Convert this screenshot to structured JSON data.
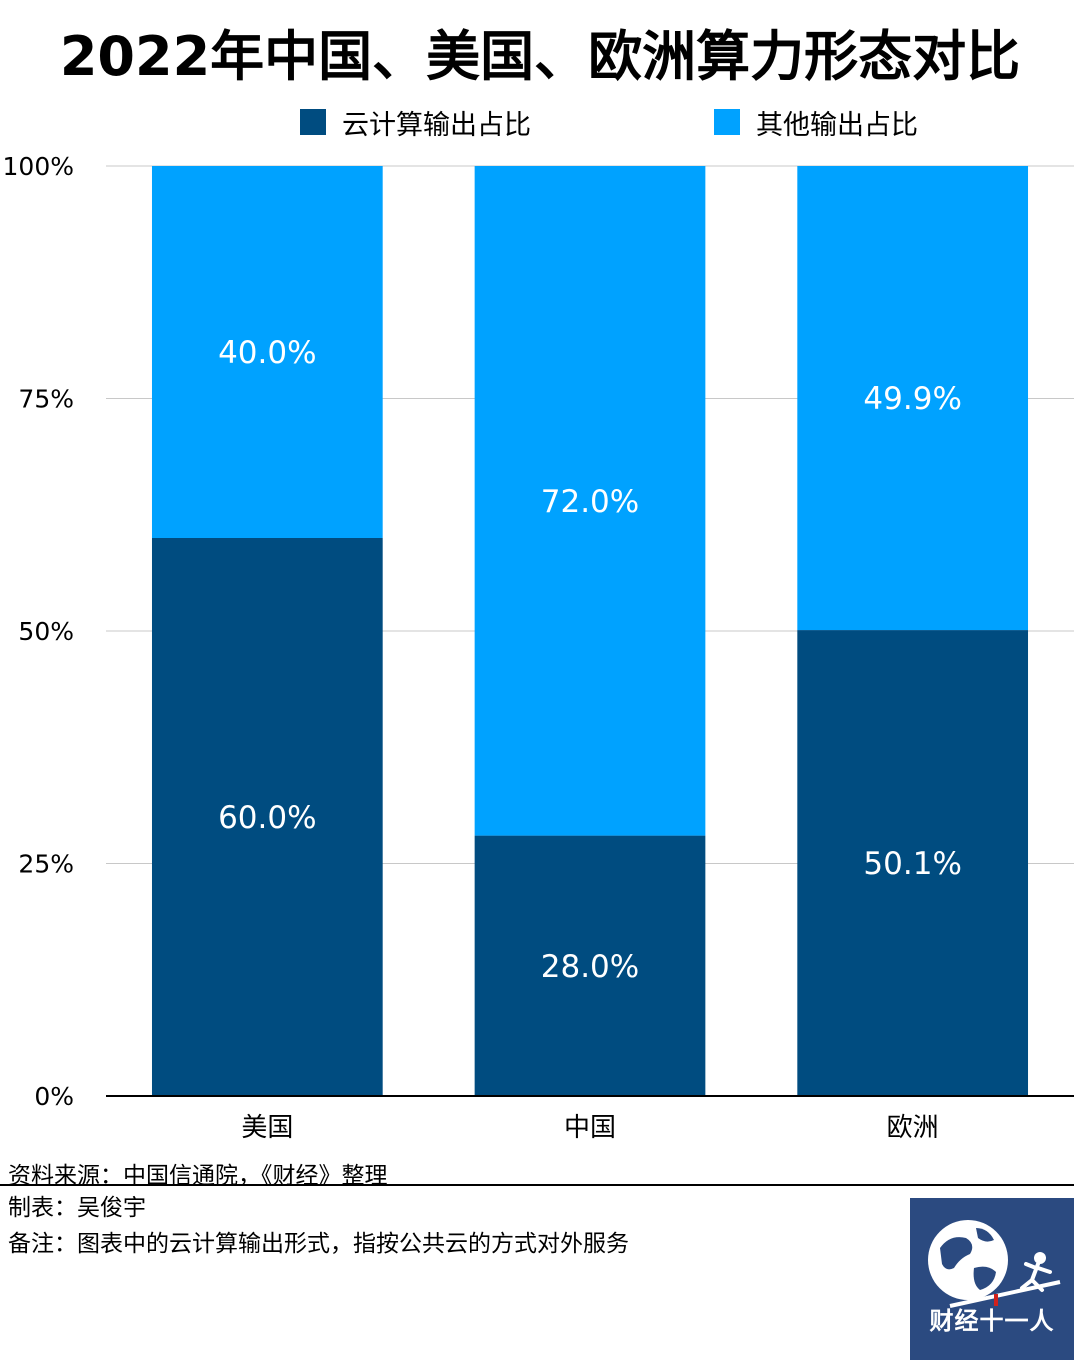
{
  "title": "2022年中国、美国、欧洲算力形态对比",
  "legend": [
    {
      "label": "云计算输出占比",
      "color": "#004c80"
    },
    {
      "label": "其他输出占比",
      "color": "#00a2ff"
    }
  ],
  "chart_data": {
    "type": "bar",
    "stacked": true,
    "title": "2022年中国、美国、欧洲算力形态对比",
    "categories": [
      "美国",
      "中国",
      "欧洲"
    ],
    "series": [
      {
        "name": "云计算输出占比",
        "values": [
          60.0,
          28.0,
          50.1
        ],
        "labels": [
          "60.0%",
          "28.0%",
          "50.1%"
        ],
        "color": "#004c80"
      },
      {
        "name": "其他输出占比",
        "values": [
          40.0,
          72.0,
          49.9
        ],
        "labels": [
          "40.0%",
          "72.0%",
          "49.9%"
        ],
        "color": "#00a2ff"
      }
    ],
    "yticks": [
      "0%",
      "25%",
      "50%",
      "75%",
      "100%"
    ],
    "ylim": [
      0,
      100
    ],
    "grid": true,
    "legend_position": "top"
  },
  "footer": {
    "source": "资料来源：中国信通院，《财经》整理",
    "author": "制表：吴俊宇",
    "note": "备注：图表中的云计算输出形式，指按公共云的方式对外服务"
  },
  "logo": {
    "text": "财经十一人"
  }
}
